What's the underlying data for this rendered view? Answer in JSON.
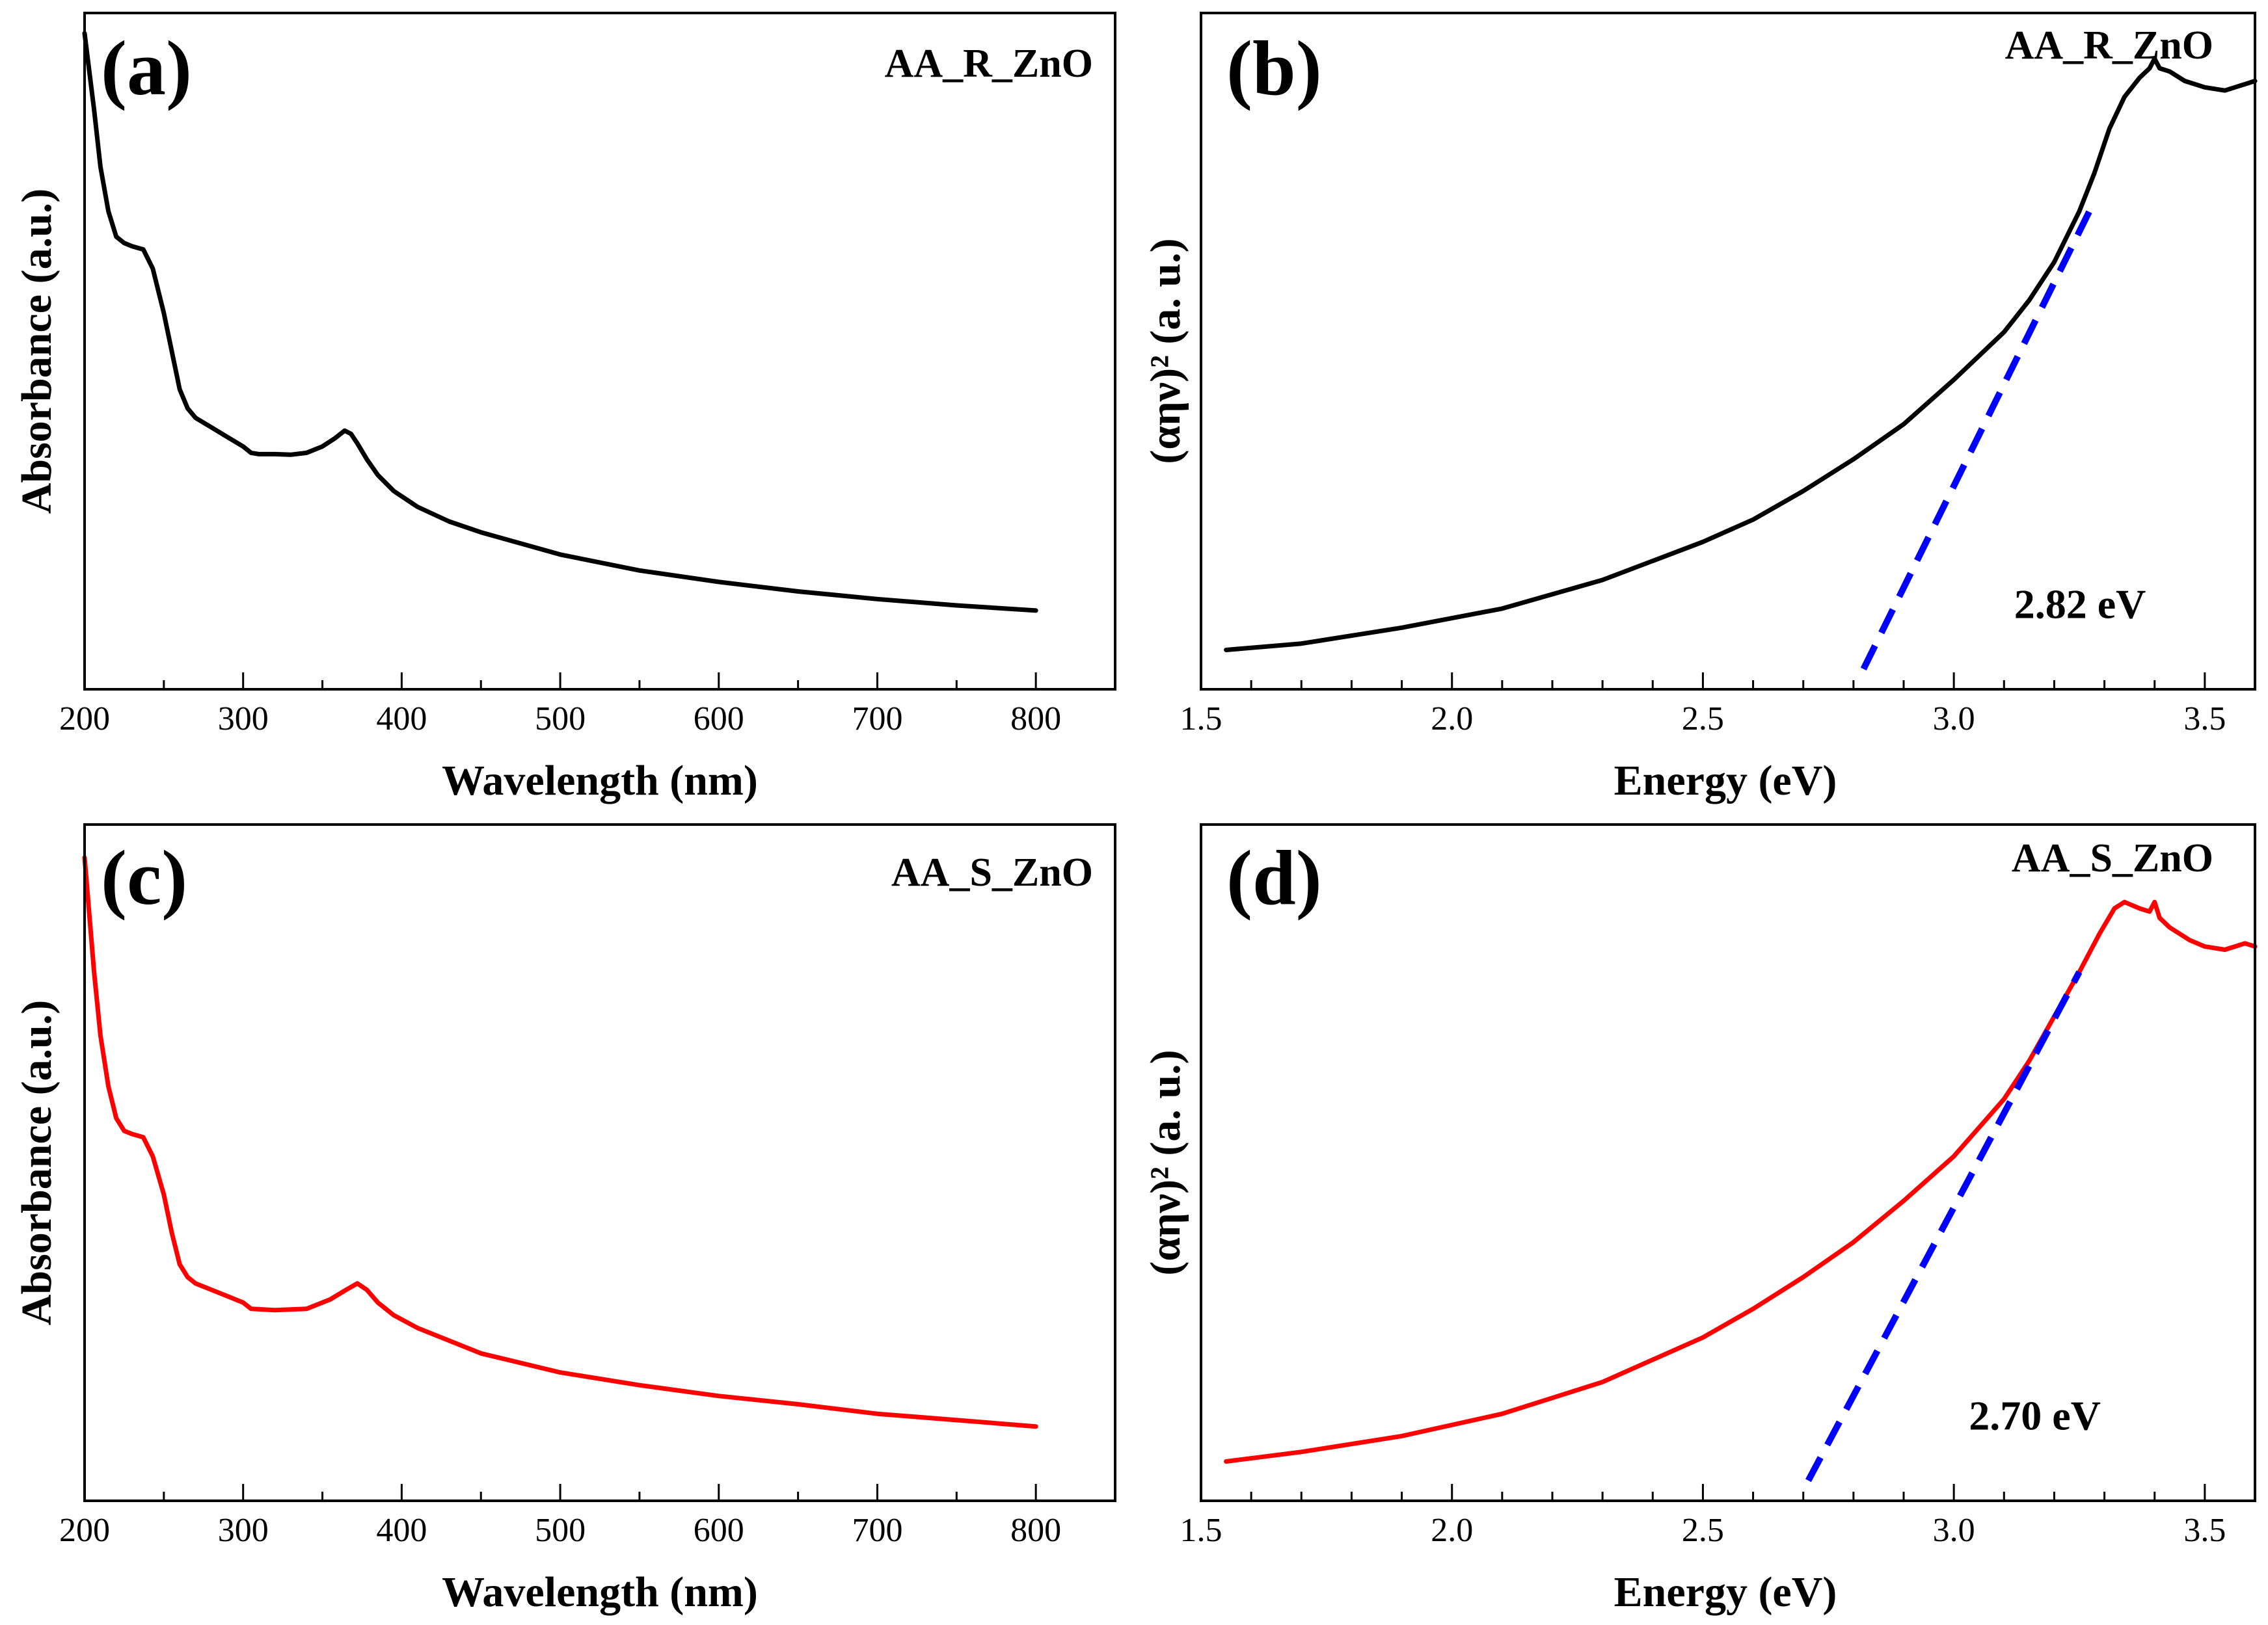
{
  "figure": {
    "colors": {
      "axis": "#000000",
      "black_curve": "#000000",
      "red_curve": "#ff0000",
      "fit_line": "#0000ff",
      "background": "#ffffff"
    }
  },
  "chart_data": [
    {
      "type": "line",
      "panel": "(a)",
      "title": "AA_R_ZnO",
      "xlabel": "Wavelength (nm)",
      "ylabel": "Absorbance (a.u.)",
      "xlim": [
        200,
        850
      ],
      "ylim": [
        0,
        1
      ],
      "x_ticks": [
        200,
        300,
        400,
        500,
        600,
        700,
        800
      ],
      "x_tick_labels": [
        "200",
        "300",
        "400",
        "500",
        "600",
        "700",
        "800"
      ],
      "x_minor_step": 50,
      "y_ticks_visible": false,
      "series": [
        {
          "color": "#000000",
          "x": [
            200,
            203,
            206,
            210,
            215,
            220,
            225,
            230,
            237,
            243,
            250,
            255,
            260,
            265,
            270,
            280,
            290,
            300,
            305,
            310,
            320,
            330,
            340,
            350,
            358,
            364,
            368,
            372,
            378,
            385,
            395,
            410,
            430,
            450,
            500,
            550,
            600,
            650,
            700,
            750,
            800
          ],
          "y": [
            1.0,
            0.94,
            0.88,
            0.79,
            0.72,
            0.68,
            0.67,
            0.665,
            0.66,
            0.63,
            0.56,
            0.5,
            0.44,
            0.41,
            0.395,
            0.38,
            0.365,
            0.35,
            0.34,
            0.338,
            0.338,
            0.337,
            0.34,
            0.35,
            0.363,
            0.375,
            0.37,
            0.355,
            0.33,
            0.305,
            0.28,
            0.255,
            0.232,
            0.215,
            0.18,
            0.155,
            0.137,
            0.122,
            0.11,
            0.1,
            0.092
          ]
        }
      ]
    },
    {
      "type": "line",
      "panel": "(b)",
      "title": "AA_R_ZnO",
      "xlabel": "Energy (eV)",
      "ylabel": "(αην)² (a. u.)",
      "xlim": [
        1.5,
        3.6
      ],
      "ylim": [
        0,
        1
      ],
      "x_ticks": [
        1.5,
        2.0,
        2.5,
        3.0,
        3.5
      ],
      "x_tick_labels": [
        "1.5",
        "2.0",
        "2.5",
        "3.0",
        "3.5"
      ],
      "x_minor_step": 0.1,
      "y_ticks_visible": false,
      "series": [
        {
          "color": "#000000",
          "x": [
            1.55,
            1.7,
            1.9,
            2.1,
            2.3,
            2.5,
            2.6,
            2.7,
            2.8,
            2.9,
            3.0,
            3.1,
            3.15,
            3.2,
            3.25,
            3.28,
            3.31,
            3.34,
            3.37,
            3.39,
            3.4,
            3.41,
            3.43,
            3.46,
            3.5,
            3.54,
            3.58,
            3.6
          ],
          "y": [
            0.03,
            0.04,
            0.065,
            0.095,
            0.14,
            0.2,
            0.235,
            0.28,
            0.33,
            0.385,
            0.455,
            0.53,
            0.58,
            0.64,
            0.72,
            0.78,
            0.85,
            0.9,
            0.93,
            0.945,
            0.96,
            0.945,
            0.94,
            0.925,
            0.915,
            0.91,
            0.92,
            0.925
          ]
        }
      ],
      "fit_line": {
        "color": "#0000ff",
        "x": [
          2.82,
          3.27
        ],
        "y": [
          0.0,
          0.72
        ],
        "dashed": true
      },
      "annotation": "2.82 eV",
      "annotation_at": [
        3.12,
        0.08
      ]
    },
    {
      "type": "line",
      "panel": "(c)",
      "title": "AA_S_ZnO",
      "xlabel": "Wavelength (nm)",
      "ylabel": "Absorbance (a.u.)",
      "xlim": [
        200,
        850
      ],
      "ylim": [
        0,
        1
      ],
      "x_ticks": [
        200,
        300,
        400,
        500,
        600,
        700,
        800
      ],
      "x_tick_labels": [
        "200",
        "300",
        "400",
        "500",
        "600",
        "700",
        "800"
      ],
      "x_minor_step": 50,
      "y_ticks_visible": false,
      "series": [
        {
          "color": "#ff0000",
          "x": [
            200,
            203,
            206,
            210,
            215,
            220,
            225,
            230,
            237,
            243,
            250,
            255,
            260,
            265,
            270,
            280,
            290,
            300,
            305,
            320,
            340,
            355,
            365,
            372,
            378,
            385,
            395,
            410,
            430,
            450,
            500,
            550,
            600,
            650,
            700,
            750,
            800
          ],
          "y": [
            0.98,
            0.89,
            0.8,
            0.7,
            0.62,
            0.57,
            0.55,
            0.545,
            0.54,
            0.51,
            0.45,
            0.39,
            0.34,
            0.32,
            0.31,
            0.3,
            0.29,
            0.28,
            0.27,
            0.268,
            0.27,
            0.285,
            0.3,
            0.31,
            0.3,
            0.28,
            0.26,
            0.24,
            0.22,
            0.2,
            0.17,
            0.15,
            0.133,
            0.12,
            0.105,
            0.095,
            0.085
          ]
        }
      ]
    },
    {
      "type": "line",
      "panel": "(d)",
      "title": "AA_S_ZnO",
      "xlabel": "Energy (eV)",
      "ylabel": "(αην)² (a. u.)",
      "xlim": [
        1.5,
        3.6
      ],
      "ylim": [
        0,
        1
      ],
      "x_ticks": [
        1.5,
        2.0,
        2.5,
        3.0,
        3.5
      ],
      "x_tick_labels": [
        "1.5",
        "2.0",
        "2.5",
        "3.0",
        "3.5"
      ],
      "x_minor_step": 0.1,
      "y_ticks_visible": false,
      "series": [
        {
          "color": "#ff0000",
          "x": [
            1.55,
            1.7,
            1.9,
            2.1,
            2.3,
            2.5,
            2.6,
            2.7,
            2.8,
            2.9,
            3.0,
            3.1,
            3.15,
            3.2,
            3.25,
            3.29,
            3.32,
            3.34,
            3.37,
            3.39,
            3.4,
            3.41,
            3.43,
            3.47,
            3.5,
            3.54,
            3.58,
            3.6
          ],
          "y": [
            0.03,
            0.045,
            0.07,
            0.105,
            0.155,
            0.225,
            0.27,
            0.32,
            0.375,
            0.44,
            0.51,
            0.6,
            0.66,
            0.73,
            0.8,
            0.86,
            0.9,
            0.91,
            0.9,
            0.895,
            0.91,
            0.885,
            0.87,
            0.85,
            0.84,
            0.835,
            0.845,
            0.84
          ]
        }
      ],
      "fit_line": {
        "color": "#0000ff",
        "x": [
          2.71,
          3.25
        ],
        "y": [
          0.0,
          0.8
        ],
        "dashed": true
      },
      "annotation": "2.70 eV",
      "annotation_at": [
        3.03,
        0.08
      ]
    }
  ]
}
